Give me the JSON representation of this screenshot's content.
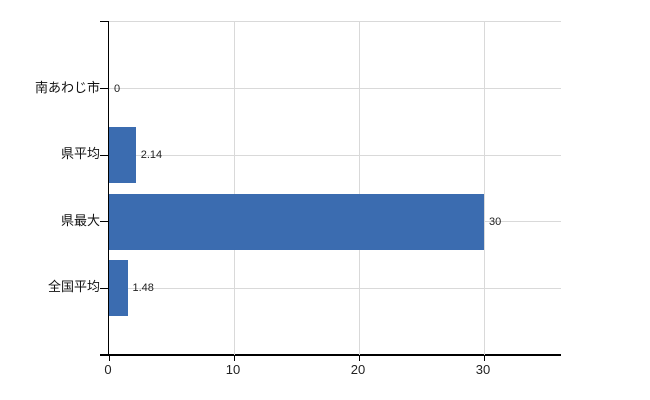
{
  "chart_data": {
    "type": "bar",
    "orientation": "horizontal",
    "title": "",
    "xlabel": "",
    "ylabel": "",
    "categories": [
      "南あわじ市",
      "県平均",
      "県最大",
      "全国平均"
    ],
    "values": [
      0,
      2.14,
      30,
      1.48
    ],
    "value_labels": [
      "0",
      "2.14",
      "30",
      "1.48"
    ],
    "x_ticks": [
      0,
      10,
      20,
      30
    ],
    "x_tick_labels": [
      "0",
      "10",
      "20",
      "30"
    ],
    "xlim": [
      0,
      36.16
    ],
    "grid": true,
    "legend": "none",
    "colors": {
      "bar": "#3b6cb0",
      "gridline": "#d9d9d9",
      "axis": "#000000",
      "text": "#222222"
    }
  }
}
